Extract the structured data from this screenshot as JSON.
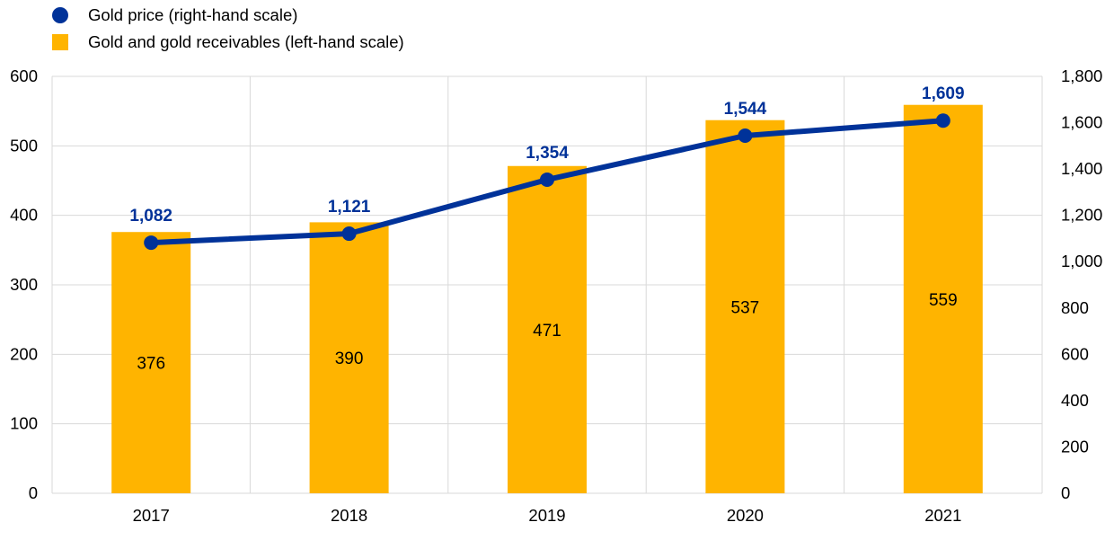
{
  "legend": [
    {
      "label": "Gold price (right-hand scale)",
      "shape": "circle",
      "color": "#003299"
    },
    {
      "label": "Gold and gold receivables (left-hand scale)",
      "shape": "square",
      "color": "#FFB400"
    }
  ],
  "chart_data": {
    "type": "bar",
    "categories": [
      "2017",
      "2018",
      "2019",
      "2020",
      "2021"
    ],
    "series": [
      {
        "name": "Gold and gold receivables (left-hand scale)",
        "type": "bar",
        "axis": "left",
        "values": [
          376,
          390,
          471,
          537,
          559
        ],
        "labels": [
          "376",
          "390",
          "471",
          "537",
          "559"
        ],
        "color": "#FFB400"
      },
      {
        "name": "Gold price (right-hand scale)",
        "type": "line",
        "axis": "right",
        "values": [
          1082,
          1121,
          1354,
          1544,
          1609
        ],
        "labels": [
          "1,082",
          "1,121",
          "1,354",
          "1,544",
          "1,609"
        ],
        "color": "#003299"
      }
    ],
    "y_left": {
      "range": [
        0,
        600
      ],
      "ticks": [
        "0",
        "100",
        "200",
        "300",
        "400",
        "500",
        "600"
      ]
    },
    "y_right": {
      "range": [
        0,
        1800
      ],
      "ticks": [
        "0",
        "200",
        "400",
        "600",
        "800",
        "1,000",
        "1,200",
        "1,400",
        "1,600",
        "1,800"
      ]
    },
    "grid": true,
    "legend_position": "top-left",
    "gridline_color": "#d9d9d9"
  }
}
